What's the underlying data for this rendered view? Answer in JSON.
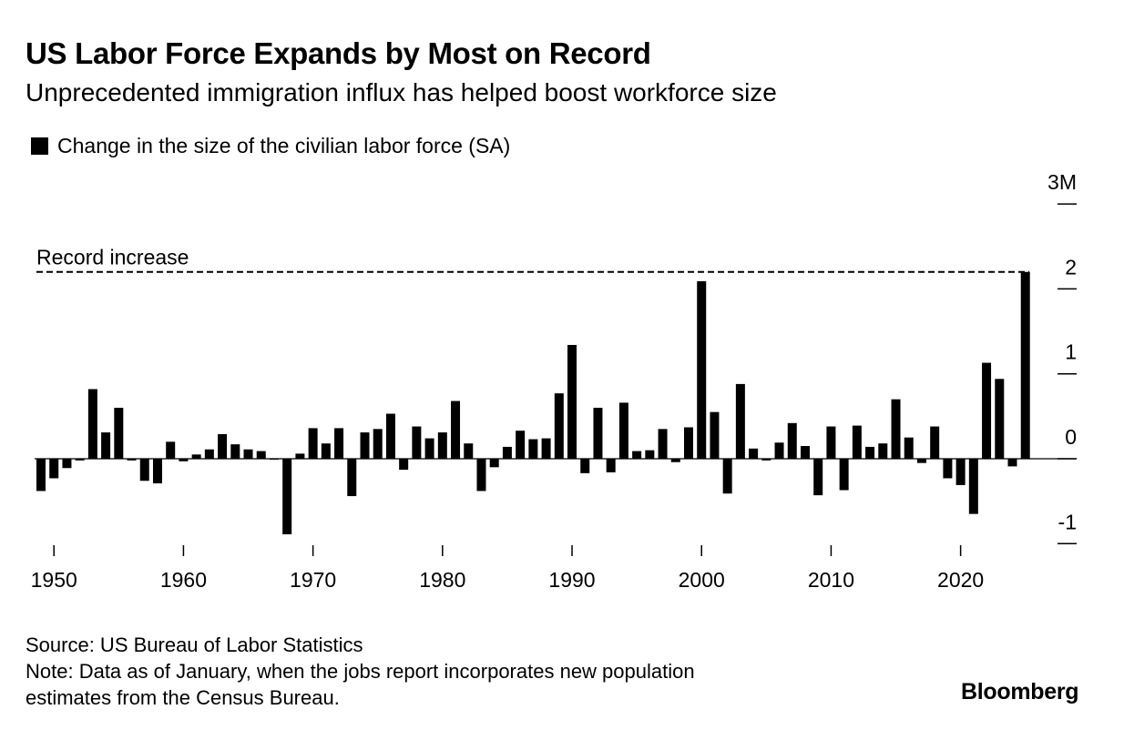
{
  "header": {
    "title": "US Labor Force Expands by Most on Record",
    "subtitle": "Unprecedented immigration influx has helped boost workforce size"
  },
  "legend": {
    "label": "Change in the size of the civilian labor force (SA)"
  },
  "footer": {
    "source": "Source: US Bureau of Labor Statistics",
    "note_line1": "Note: Data as of January, when the jobs report incorporates new population",
    "note_line2": "estimates from the Census Bureau."
  },
  "brand": "Bloomberg",
  "colors": {
    "bar": "#000000",
    "background": "#ffffff",
    "axis": "#000000"
  },
  "chart_data": {
    "type": "bar",
    "title": "US Labor Force Expands by Most on Record",
    "ylabel": "Change in the size of the civilian labor force (SA)",
    "unit": "M",
    "ylim": [
      -1,
      3
    ],
    "yticks": [
      3,
      2,
      1,
      0,
      -1
    ],
    "ytick_labels": [
      "3M",
      "2",
      "1",
      "0",
      "-1"
    ],
    "xticks": [
      1950,
      1960,
      1970,
      1980,
      1990,
      2000,
      2010,
      2020
    ],
    "xtick_labels": [
      "1950",
      "1960",
      "1970",
      "1980",
      "1990",
      "2000",
      "2010",
      "2020"
    ],
    "annotation": {
      "label": "Record increase",
      "value": 2.2
    },
    "categories": [
      1949,
      1950,
      1951,
      1952,
      1953,
      1954,
      1955,
      1956,
      1957,
      1958,
      1959,
      1960,
      1961,
      1962,
      1963,
      1964,
      1965,
      1966,
      1967,
      1968,
      1969,
      1970,
      1971,
      1972,
      1973,
      1974,
      1975,
      1976,
      1977,
      1978,
      1979,
      1980,
      1981,
      1982,
      1983,
      1984,
      1985,
      1986,
      1987,
      1988,
      1989,
      1990,
      1991,
      1992,
      1993,
      1994,
      1995,
      1996,
      1997,
      1998,
      1999,
      2000,
      2001,
      2002,
      2003,
      2004,
      2005,
      2006,
      2007,
      2008,
      2009,
      2010,
      2011,
      2012,
      2013,
      2014,
      2015,
      2016,
      2017,
      2018,
      2019,
      2020,
      2021,
      2022,
      2023,
      2024,
      2025
    ],
    "values": [
      -0.38,
      -0.23,
      -0.11,
      -0.02,
      0.82,
      0.31,
      0.6,
      -0.02,
      -0.26,
      -0.29,
      0.2,
      -0.03,
      0.05,
      0.11,
      0.29,
      0.17,
      0.11,
      0.09,
      -0.01,
      -0.89,
      0.06,
      0.36,
      0.18,
      0.36,
      -0.44,
      0.31,
      0.35,
      0.53,
      -0.13,
      0.38,
      0.24,
      0.31,
      0.68,
      0.18,
      -0.38,
      -0.1,
      0.14,
      0.33,
      0.23,
      0.24,
      0.77,
      1.34,
      -0.17,
      0.6,
      -0.16,
      0.66,
      0.09,
      0.1,
      0.35,
      -0.04,
      0.37,
      2.09,
      0.55,
      -0.41,
      0.88,
      0.12,
      -0.02,
      0.19,
      0.42,
      0.15,
      -0.43,
      0.38,
      -0.37,
      0.39,
      0.14,
      0.18,
      0.7,
      0.25,
      -0.05,
      0.38,
      -0.23,
      -0.31,
      -0.65,
      1.13,
      0.94,
      -0.09,
      2.2
    ]
  }
}
